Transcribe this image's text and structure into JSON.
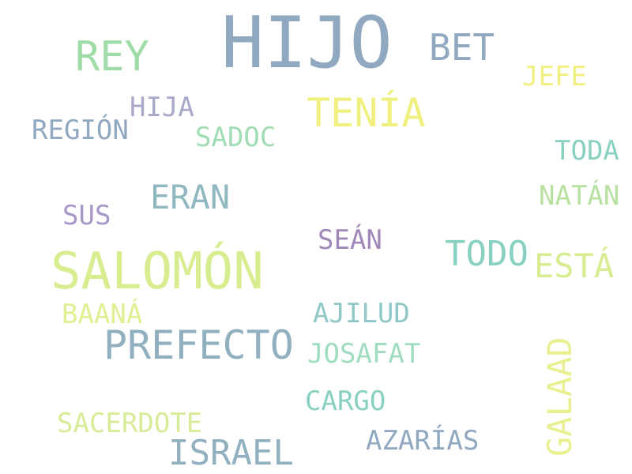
{
  "words": [
    {
      "text": "HIJO",
      "color": "#90a8c0"
    },
    {
      "text": "BET",
      "color": "#90a8c0"
    },
    {
      "text": "REY",
      "color": "#a0dca8"
    },
    {
      "text": "JEFE",
      "color": "#f0f080"
    },
    {
      "text": "HIJA",
      "color": "#a8a8c8"
    },
    {
      "text": "TENÍA",
      "color": "#f0f080"
    },
    {
      "text": "REGIÓN",
      "color": "#90a8c0"
    },
    {
      "text": "SADOC",
      "color": "#a0dcb4"
    },
    {
      "text": "TODA",
      "color": "#88d0c0"
    },
    {
      "text": "ERAN",
      "color": "#90b8c0"
    },
    {
      "text": "NATÁN",
      "color": "#b8e0a0"
    },
    {
      "text": "SUS",
      "color": "#a898c8"
    },
    {
      "text": "SEÁN",
      "color": "#a088b8"
    },
    {
      "text": "SALOMÓN",
      "color": "#d8ec90"
    },
    {
      "text": "TODO",
      "color": "#88d0c0"
    },
    {
      "text": "ESTÁ",
      "color": "#d8ec90"
    },
    {
      "text": "BAANÁ",
      "color": "#e0f090"
    },
    {
      "text": "AJILUD",
      "color": "#90c8c8"
    },
    {
      "text": "PREFECTO",
      "color": "#90b0c0"
    },
    {
      "text": "JOSAFAT",
      "color": "#a0dcc0"
    },
    {
      "text": "GALAAD",
      "color": "#e8f090"
    },
    {
      "text": "CARGO",
      "color": "#88d0c0"
    },
    {
      "text": "SACERDOTE",
      "color": "#d8ec98"
    },
    {
      "text": "AZARÍAS",
      "color": "#90a8c0"
    },
    {
      "text": "ISRAEL",
      "color": "#90b0c0"
    }
  ]
}
